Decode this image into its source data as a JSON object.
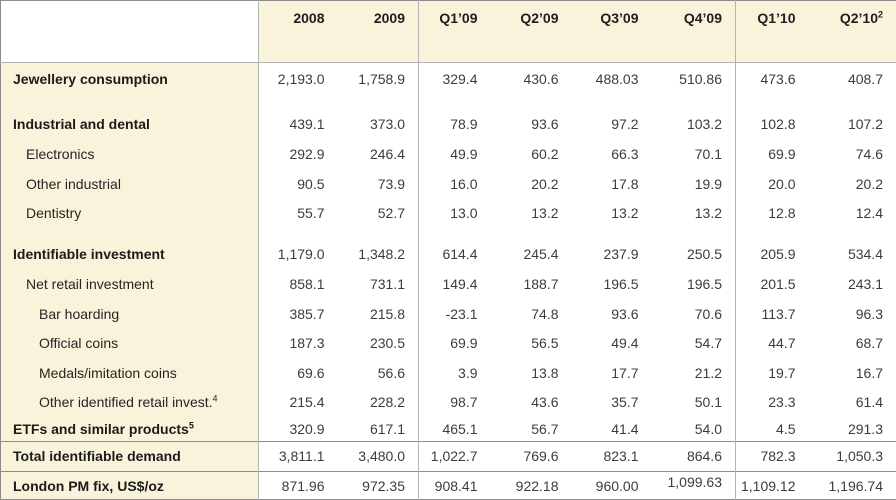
{
  "colors": {
    "header_background": "#FAF3DB",
    "label_column_background": "#FAF3DB",
    "data_background": "#FFFFFF",
    "outer_border": "#8C8C8C",
    "grid_line": "#B3B3B3",
    "bold_text": "#1B1B1B",
    "number_text": "#3C3C3C"
  },
  "chart_data": {
    "type": "table",
    "layout": {
      "label_column_first": true,
      "vertical_dividers_after": [
        "label-column",
        "2009",
        "Q4’09"
      ],
      "rules_above": [
        "Total identifiable demand",
        "London PM fix, US$/oz"
      ]
    },
    "columns": [
      {
        "label": "2008"
      },
      {
        "label": "2009"
      },
      {
        "label": "Q1’09"
      },
      {
        "label": "Q2’09"
      },
      {
        "label": "Q3’09"
      },
      {
        "label": "Q4’09"
      },
      {
        "label": "Q1’10"
      },
      {
        "label": "Q2’10",
        "sup": "2"
      }
    ],
    "rows": [
      {
        "name": "jewellery-consumption",
        "label": "Jewellery consumption",
        "bold": true,
        "indent": 0,
        "values": [
          "2,193.0",
          "1,758.9",
          "329.4",
          "430.6",
          "488.03",
          "510.86",
          "473.6",
          "408.7"
        ]
      },
      {
        "name": "spacer-1",
        "spacer": true
      },
      {
        "name": "industrial-and-dental",
        "label": "Industrial and dental",
        "bold": true,
        "indent": 0,
        "values": [
          "439.1",
          "373.0",
          "78.9",
          "93.6",
          "97.2",
          "103.2",
          "102.8",
          "107.2"
        ]
      },
      {
        "name": "electronics",
        "label": "Electronics",
        "bold": false,
        "indent": 1,
        "values": [
          "292.9",
          "246.4",
          "49.9",
          "60.2",
          "66.3",
          "70.1",
          "69.9",
          "74.6"
        ]
      },
      {
        "name": "other-industrial",
        "label": "Other industrial",
        "bold": false,
        "indent": 1,
        "values": [
          "90.5",
          "73.9",
          "16.0",
          "20.2",
          "17.8",
          "19.9",
          "20.0",
          "20.2"
        ]
      },
      {
        "name": "dentistry",
        "label": "Dentistry",
        "bold": false,
        "indent": 1,
        "values": [
          "55.7",
          "52.7",
          "13.0",
          "13.2",
          "13.2",
          "13.2",
          "12.8",
          "12.4"
        ]
      },
      {
        "name": "spacer-2",
        "spacer": true
      },
      {
        "name": "identifiable-investment",
        "label": "Identifiable investment",
        "bold": true,
        "indent": 0,
        "values": [
          "1,179.0",
          "1,348.2",
          "614.4",
          "245.4",
          "237.9",
          "250.5",
          "205.9",
          "534.4"
        ]
      },
      {
        "name": "net-retail-investment",
        "label": "Net retail investment",
        "bold": false,
        "indent": 1,
        "values": [
          "858.1",
          "731.1",
          "149.4",
          "188.7",
          "196.5",
          "196.5",
          "201.5",
          "243.1"
        ]
      },
      {
        "name": "bar-hoarding",
        "label": "Bar hoarding",
        "bold": false,
        "indent": 2,
        "values": [
          "385.7",
          "215.8",
          "-23.1",
          "74.8",
          "93.6",
          "70.6",
          "113.7",
          "96.3"
        ]
      },
      {
        "name": "official-coins",
        "label": "Official coins",
        "bold": false,
        "indent": 2,
        "values": [
          "187.3",
          "230.5",
          "69.9",
          "56.5",
          "49.4",
          "54.7",
          "44.7",
          "68.7"
        ]
      },
      {
        "name": "medals-imitation-coins",
        "label": "Medals/imitation coins",
        "bold": false,
        "indent": 2,
        "values": [
          "69.6",
          "56.6",
          "3.9",
          "13.8",
          "17.7",
          "21.2",
          "19.7",
          "16.7"
        ]
      },
      {
        "name": "other-identified-retail-invest",
        "label": "Other identified retail invest.",
        "sup": "4",
        "bold": false,
        "indent": 2,
        "values": [
          "215.4",
          "228.2",
          "98.7",
          "43.6",
          "35.7",
          "50.1",
          "23.3",
          "61.4"
        ]
      },
      {
        "name": "etfs-and-similar-products",
        "label": "ETFs and similar products",
        "sup": "5",
        "bold": true,
        "indent": 0,
        "values": [
          "320.9",
          "617.1",
          "465.1",
          "56.7",
          "41.4",
          "54.0",
          "4.5",
          "291.3"
        ]
      },
      {
        "name": "total-identifiable-demand",
        "label": "Total identifiable demand",
        "bold": true,
        "indent": 0,
        "rule_above": true,
        "values": [
          "3,811.1",
          "3,480.0",
          "1,022.7",
          "769.6",
          "823.1",
          "864.6",
          "782.3",
          "1,050.3"
        ]
      },
      {
        "name": "london-pm-fix",
        "label": "London PM fix, US$/oz",
        "bold": true,
        "indent": 0,
        "rule_above": true,
        "values": [
          "871.96",
          "972.35",
          "908.41",
          "922.18",
          "960.00",
          "1,099.63",
          "1,109.12",
          "1,196.74"
        ]
      }
    ]
  }
}
